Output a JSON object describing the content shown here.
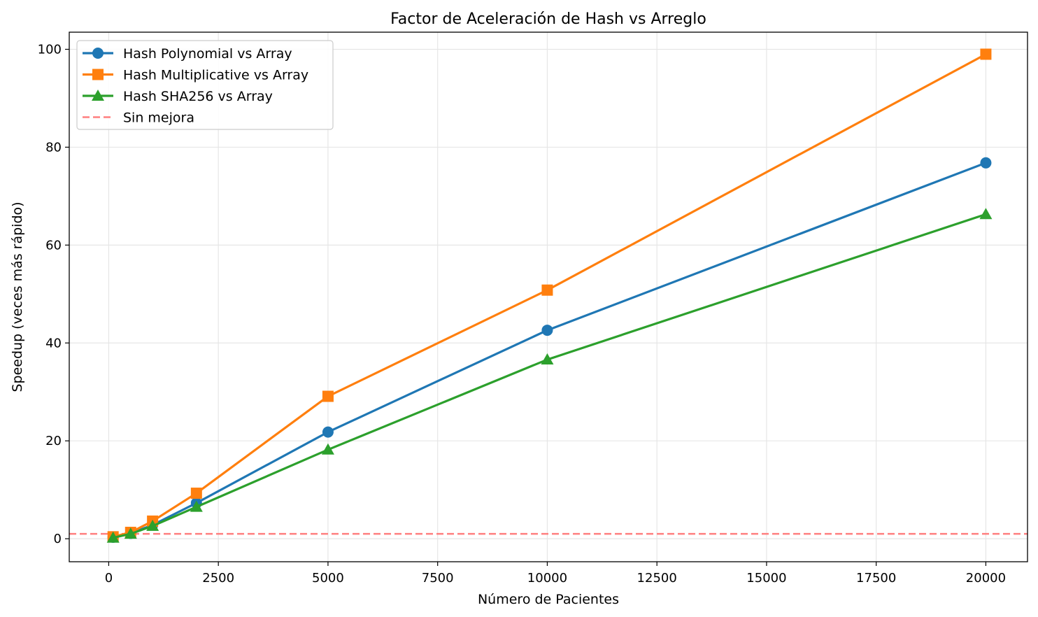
{
  "chart_data": {
    "type": "line",
    "title": "Factor de Aceleración de Hash vs Arreglo",
    "xlabel": "Número de Pacientes",
    "ylabel": "Speedup (veces más rápido)",
    "xlim": [
      -900,
      20950
    ],
    "ylim": [
      -4.7,
      103.5
    ],
    "xticks": [
      0,
      2500,
      5000,
      7500,
      10000,
      12500,
      15000,
      17500,
      20000
    ],
    "xtick_labels": [
      "0",
      "2500",
      "5000",
      "7500",
      "10000",
      "12500",
      "15000",
      "17500",
      "20000"
    ],
    "yticks": [
      0,
      20,
      40,
      60,
      80,
      100
    ],
    "ytick_labels": [
      "0",
      "20",
      "40",
      "60",
      "80",
      "100"
    ],
    "grid": true,
    "legend_position": "top-left",
    "x": [
      100,
      500,
      1000,
      2000,
      5000,
      10000,
      20000
    ],
    "series": [
      {
        "name": "Hash Polynomial vs Array",
        "color": "#1f77b4",
        "marker": "circle",
        "values": [
          0.3,
          1.1,
          2.8,
          7.3,
          21.8,
          42.6,
          76.8
        ]
      },
      {
        "name": "Hash Multiplicative vs Array",
        "color": "#ff7f0e",
        "marker": "square",
        "values": [
          0.4,
          1.3,
          3.6,
          9.3,
          29.1,
          50.8,
          99.0
        ]
      },
      {
        "name": "Hash SHA256 vs Array",
        "color": "#2ca02c",
        "marker": "triangle",
        "values": [
          0.2,
          1.0,
          2.6,
          6.5,
          18.2,
          36.6,
          66.3
        ]
      }
    ],
    "reference_line": {
      "name": "Sin mejora",
      "y": 1,
      "color": "#ff7f7f",
      "style": "dashed"
    }
  }
}
